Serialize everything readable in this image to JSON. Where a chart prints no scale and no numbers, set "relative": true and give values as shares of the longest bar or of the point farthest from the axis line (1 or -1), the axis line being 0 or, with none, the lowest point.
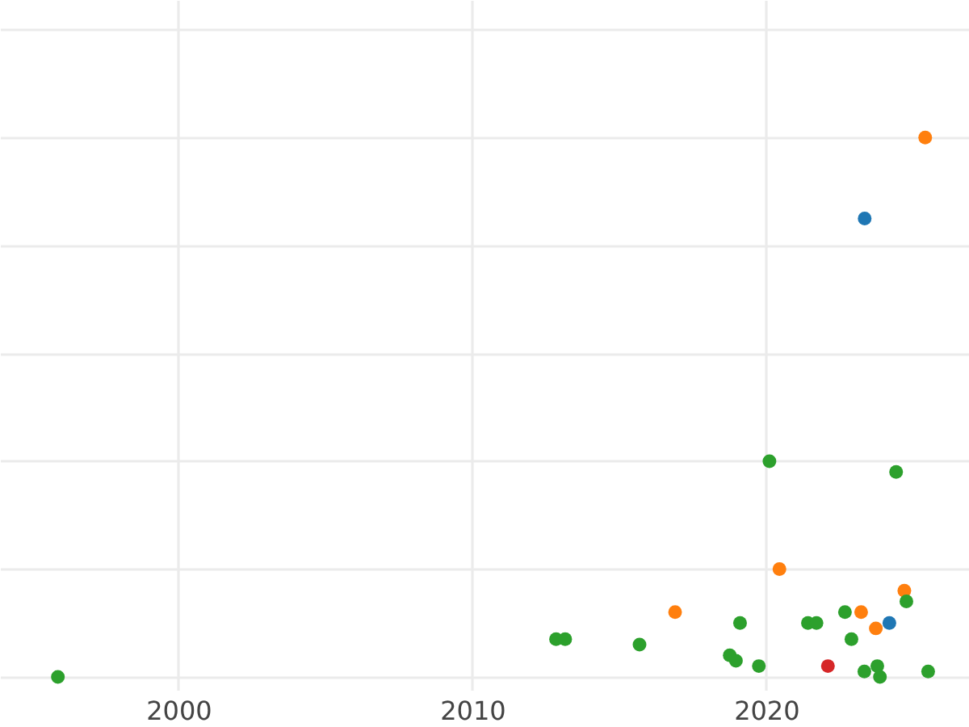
{
  "chart_data": {
    "type": "scatter",
    "relative": true,
    "grid": true,
    "marker": "circle",
    "tick_labels": "x",
    "xlim": [
      1993.93,
      2026.9
    ],
    "xticks": [
      2000,
      2010,
      2020
    ],
    "series": [
      {
        "color": "#1f77b4",
        "x": [
          2023.35,
          2024.19
        ],
        "values": [
          0.85,
          0.1
        ]
      },
      {
        "color": "#ff7f0e",
        "x": [
          2016.9,
          2020.45,
          2023.23,
          2023.73,
          2024.7,
          2025.41
        ],
        "values": [
          0.12,
          0.2,
          0.12,
          0.09,
          0.16,
          1.0
        ]
      },
      {
        "color": "#2ca02c",
        "x": [
          1995.9,
          2012.85,
          2013.16,
          2015.69,
          2018.76,
          2018.97,
          2019.11,
          2019.75,
          2020.11,
          2021.42,
          2021.71,
          2022.68,
          2022.9,
          2023.34,
          2023.78,
          2023.87,
          2024.42,
          2024.77,
          2025.51
        ],
        "values": [
          0.0,
          0.07,
          0.07,
          0.06,
          0.04,
          0.03,
          0.1,
          0.02,
          0.4,
          0.1,
          0.1,
          0.12,
          0.07,
          0.01,
          0.02,
          0.0,
          0.38,
          0.14,
          0.01
        ]
      },
      {
        "color": "#d62728",
        "x": [
          2022.1
        ],
        "values": [
          0.02
        ]
      }
    ]
  }
}
